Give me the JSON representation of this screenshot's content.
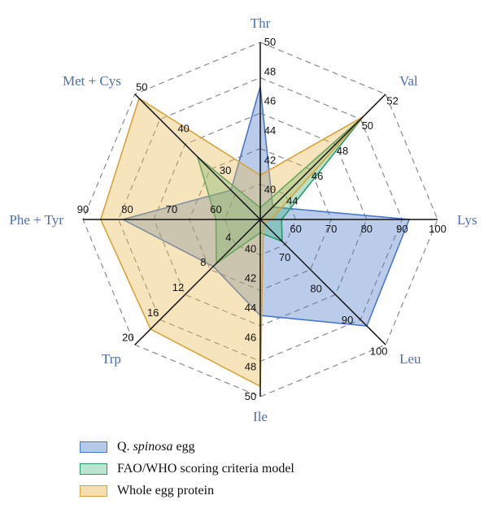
{
  "chart_data": {
    "type": "radar",
    "axes": [
      {
        "name": "Thr",
        "ticks": [
          "40",
          "42",
          "44",
          "46",
          "48",
          "50"
        ],
        "range": [
          38,
          50
        ]
      },
      {
        "name": "Val",
        "ticks": [
          "44",
          "46",
          "48",
          "50",
          "52"
        ],
        "range": [
          42,
          52
        ]
      },
      {
        "name": "Lys",
        "ticks": [
          "60",
          "70",
          "80",
          "90",
          "100"
        ],
        "range": [
          50,
          100
        ]
      },
      {
        "name": "Leu",
        "ticks": [
          "70",
          "80",
          "90",
          "100"
        ],
        "range": [
          60,
          100
        ]
      },
      {
        "name": "Ile",
        "ticks": [
          "40",
          "42",
          "44",
          "46",
          "48",
          "50"
        ],
        "range": [
          38,
          50
        ]
      },
      {
        "name": "Trp",
        "ticks": [
          "4",
          "8",
          "12",
          "16",
          "20"
        ],
        "range": [
          0,
          20
        ]
      },
      {
        "name": "Phe + Tyr",
        "ticks": [
          "60",
          "70",
          "80",
          "90"
        ],
        "range": [
          50,
          90
        ]
      },
      {
        "name": "Met + Cys",
        "ticks": [
          "30",
          "40",
          "50"
        ],
        "range": [
          20,
          50
        ]
      }
    ],
    "series": [
      {
        "name": "Q. spinosa egg",
        "name_prefix": "Q.",
        "name_italic": "spinosa",
        "name_suffix": " egg",
        "color": "#4a78c8",
        "fill": "#4a78c8",
        "values": [
          47,
          43,
          92,
          94,
          44.5,
          7.5,
          81,
          27
        ]
      },
      {
        "name": "FAO/WHO scoring criteria model",
        "name_prefix": "FAO/WHO scoring criteria model",
        "name_italic": "",
        "name_suffix": "",
        "color": "#2a9a6a",
        "fill": "#3bb27b",
        "values": [
          38.8,
          50.2,
          56,
          67,
          38.9,
          7,
          60,
          35
        ]
      },
      {
        "name": "Whole egg protein",
        "name_prefix": "Whole egg protein",
        "name_italic": "",
        "name_suffix": "",
        "color": "#d6a43a",
        "fill": "#e8b74f",
        "values": [
          41,
          50.2,
          53,
          61,
          49.3,
          17.5,
          86,
          49
        ]
      }
    ]
  }
}
